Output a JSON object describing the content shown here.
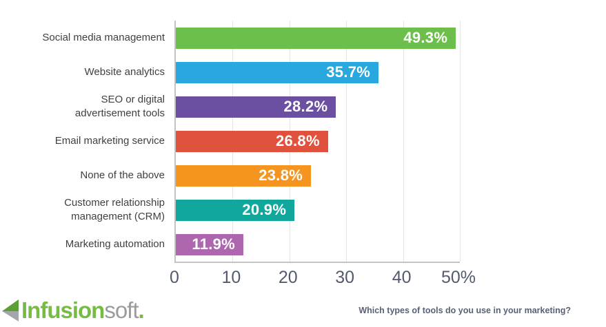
{
  "chart_data": {
    "type": "bar",
    "orientation": "horizontal",
    "title": "",
    "xlabel": "",
    "ylabel": "",
    "categories": [
      "Social media management",
      "Website analytics",
      "SEO or digital\nadvertisement tools",
      "Email marketing service",
      "None of the above",
      "Customer relationship\nmanagement (CRM)",
      "Marketing automation"
    ],
    "values": [
      49.3,
      35.7,
      28.2,
      26.8,
      23.8,
      20.9,
      11.9
    ],
    "value_labels": [
      "49.3%",
      "35.7%",
      "28.2%",
      "26.8%",
      "23.8%",
      "20.9%",
      "11.9%"
    ],
    "bar_colors": [
      "#6bbf4a",
      "#29a8e0",
      "#6b4fa1",
      "#e0523e",
      "#f5941f",
      "#12a79d",
      "#ae67ae"
    ],
    "xlim": [
      0,
      50
    ],
    "x_ticks": [
      "0",
      "10",
      "20",
      "30",
      "40",
      "50%"
    ],
    "grid": "vertical gridlines at 10,20,30,40,50",
    "legend": "none"
  },
  "footer": {
    "brand": {
      "name_primary": "Infusion",
      "name_secondary": "soft",
      "period": ".",
      "green": "#76bc43",
      "gray": "#9a9c9e"
    },
    "question": "Which types of tools do you use in your marketing?"
  },
  "style_colors": {
    "axis_line": "#c4c4c4",
    "gridline": "#e3e3e3",
    "category_text": "#404040",
    "tick_text": "#525a6d",
    "value_text": "#ffffff",
    "question_text": "#5a6175"
  }
}
